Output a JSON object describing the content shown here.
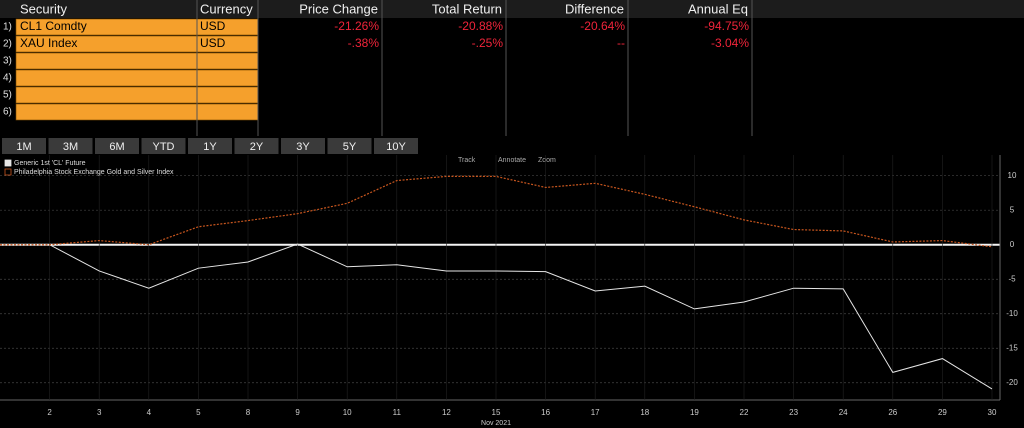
{
  "table": {
    "headers": [
      "Security",
      "Currency",
      "Price Change",
      "Total Return",
      "Difference",
      "Annual Eq"
    ],
    "rows": [
      [
        "1)",
        "CL1 Comdty",
        "USD",
        "-21.26%",
        "-20.88%",
        "-20.64%",
        "-94.75%"
      ],
      [
        "2)",
        "XAU Index",
        "USD",
        "-.38%",
        "-.25%",
        "--",
        "-3.04%"
      ],
      [
        "3)"
      ],
      [
        "4)"
      ],
      [
        "5)"
      ],
      [
        "6)"
      ]
    ]
  },
  "buttons": [
    "1M",
    "3M",
    "6M",
    "YTD",
    "1Y",
    "2Y",
    "3Y",
    "5Y",
    "10Y"
  ],
  "toolbar": [
    "Track",
    "Annotate",
    "Zoom"
  ],
  "chart_data": {
    "type": "line",
    "x_label": "Nov 2021",
    "categories": [
      null,
      "2",
      "3",
      "4",
      "5",
      "8",
      "9",
      "10",
      "11",
      "12",
      "15",
      "16",
      "17",
      "18",
      "19",
      "22",
      "23",
      "24",
      "26",
      "29",
      "30"
    ],
    "series": [
      {
        "name": "Generic 1st 'CL' Future",
        "color": "#e6e6e6",
        "style": "solid",
        "values": [
          0,
          0,
          -3.8,
          -6.3,
          -3.4,
          -2.5,
          0.1,
          -3.2,
          -2.9,
          -3.8,
          -3.8,
          -3.9,
          -6.7,
          -6.0,
          -9.3,
          -8.3,
          -6.3,
          -6.4,
          -18.5,
          -16.5,
          -20.9
        ]
      },
      {
        "name": "Philadelphia Stock Exchange Gold and Silver Index",
        "color": "#c8561e",
        "style": "dotted",
        "values": [
          0,
          0,
          0.6,
          0,
          2.6,
          3.5,
          4.5,
          6.0,
          9.3,
          9.9,
          9.9,
          8.3,
          8.9,
          7.3,
          5.5,
          3.6,
          2.2,
          2.0,
          0.4,
          0.6,
          -0.3
        ]
      }
    ],
    "ylim": [
      -22.5,
      13
    ],
    "yticks": [
      10,
      5,
      0,
      -5,
      -10,
      -15,
      -20
    ],
    "grid": true
  }
}
